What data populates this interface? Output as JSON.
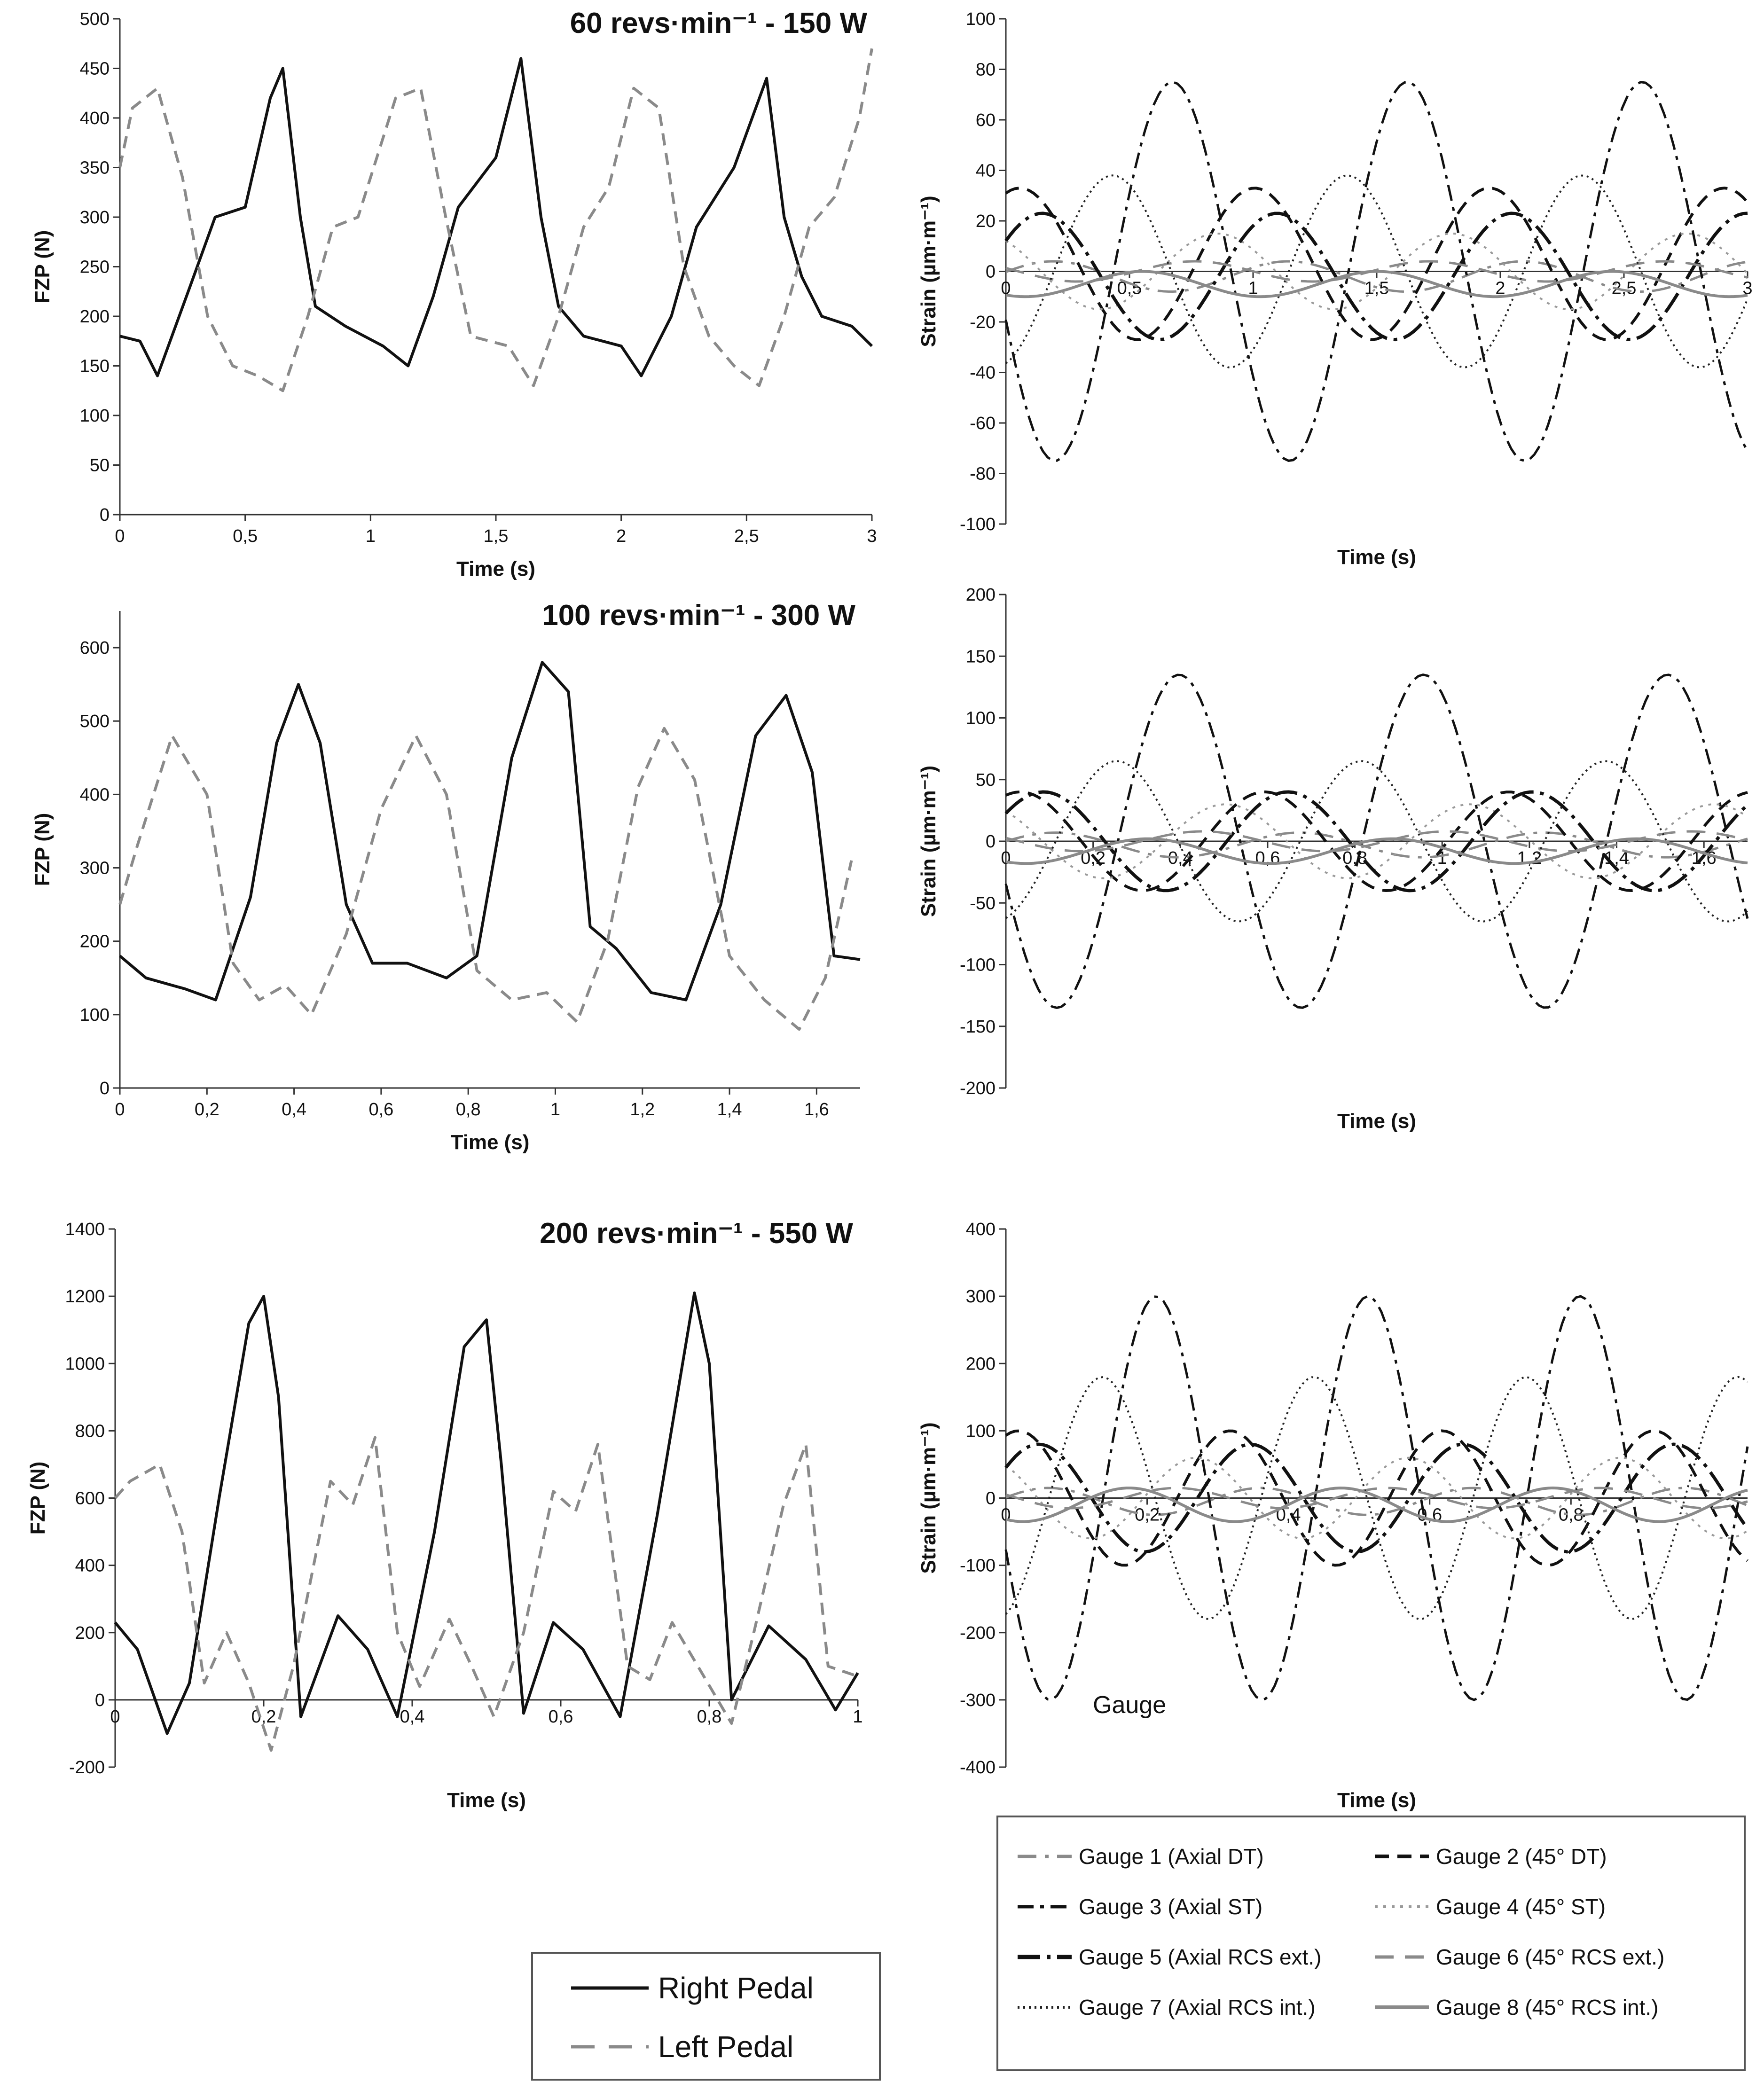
{
  "chart_data": [
    {
      "type": "line",
      "id": "force-60",
      "title": "60 revs·min⁻¹ - 150 W",
      "xlabel": "Time (s)",
      "ylabel": "FZP (N)",
      "xlim": [
        0,
        3
      ],
      "ylim": [
        0,
        500
      ],
      "xticks": [
        0,
        0.5,
        1,
        1.5,
        2,
        2.5,
        3
      ],
      "xtick_labels": [
        "0",
        "0,5",
        "1",
        "1,5",
        "2",
        "2,5",
        "3"
      ],
      "yticks": [
        0,
        50,
        100,
        150,
        200,
        250,
        300,
        350,
        400,
        450,
        500
      ],
      "ytick_labels": [
        "0",
        "50",
        "100",
        "150",
        "200",
        "250",
        "300",
        "350",
        "400",
        "450",
        "500"
      ],
      "series": [
        {
          "name": "Right Pedal",
          "style": "solid",
          "x": [
            0,
            0.08,
            0.15,
            0.28,
            0.38,
            0.5,
            0.6,
            0.65,
            0.72,
            0.78,
            0.9,
            1.05,
            1.15,
            1.25,
            1.35,
            1.5,
            1.6,
            1.68,
            1.75,
            1.85,
            2.0,
            2.08,
            2.2,
            2.3,
            2.45,
            2.58,
            2.65,
            2.72,
            2.8,
            2.92,
            3.0
          ],
          "y": [
            180,
            175,
            140,
            230,
            300,
            310,
            420,
            450,
            300,
            210,
            190,
            170,
            150,
            220,
            310,
            360,
            460,
            300,
            210,
            180,
            170,
            140,
            200,
            290,
            350,
            440,
            300,
            240,
            200,
            190,
            170
          ]
        },
        {
          "name": "Left Pedal",
          "style": "dashed",
          "x": [
            0,
            0.05,
            0.15,
            0.25,
            0.35,
            0.45,
            0.55,
            0.65,
            0.75,
            0.85,
            0.95,
            1.1,
            1.2,
            1.3,
            1.4,
            1.55,
            1.65,
            1.75,
            1.85,
            1.95,
            2.05,
            2.15,
            2.25,
            2.35,
            2.45,
            2.55,
            2.65,
            2.75,
            2.85,
            2.95,
            3.0
          ],
          "y": [
            350,
            410,
            430,
            340,
            200,
            150,
            140,
            125,
            200,
            290,
            300,
            420,
            430,
            300,
            180,
            170,
            130,
            200,
            290,
            330,
            430,
            410,
            250,
            180,
            150,
            130,
            200,
            290,
            320,
            400,
            470
          ]
        }
      ]
    },
    {
      "type": "line",
      "id": "strain-60",
      "xlabel": "Time (s)",
      "ylabel": "Strain (µm·m⁻¹)",
      "xlim": [
        0,
        3
      ],
      "ylim": [
        -100,
        100
      ],
      "xticks": [
        0,
        0.5,
        1,
        1.5,
        2,
        2.5,
        3
      ],
      "xtick_labels": [
        "0",
        "0,5",
        "1",
        "1,5",
        "2",
        "2,5",
        "3"
      ],
      "yticks": [
        -100,
        -80,
        -60,
        -40,
        -20,
        0,
        20,
        40,
        60,
        80,
        100
      ],
      "ytick_labels": [
        "-100",
        "-80",
        "-60",
        "-40",
        "-20",
        "0",
        "20",
        "40",
        "60",
        "80",
        "100"
      ],
      "period": 0.95,
      "gauges": [
        {
          "name": "Gauge 1 (Axial DT)",
          "amp": 6,
          "phase": 0.3,
          "offset": -2
        },
        {
          "name": "Gauge 2 (45° DT)",
          "amp": 30,
          "phase": 1.2,
          "offset": 3
        },
        {
          "name": "Gauge 3 (Axial ST)",
          "amp": 75,
          "phase": 3.4,
          "offset": 0
        },
        {
          "name": "Gauge 4 (45° ST)",
          "amp": 15,
          "phase": 2.2,
          "offset": 0
        },
        {
          "name": "Gauge 5 (Axial RCS ext.)",
          "amp": 25,
          "phase": 0.6,
          "offset": -2
        },
        {
          "name": "Gauge 6 (45° RCS ext.)",
          "amp": 4,
          "phase": 2.8,
          "offset": 0
        },
        {
          "name": "Gauge 7 (Axial RCS int.)",
          "amp": 38,
          "phase": 5.0,
          "offset": 0
        },
        {
          "name": "Gauge 8 (45° RCS int.)",
          "amp": 5,
          "phase": 4.2,
          "offset": -5
        }
      ]
    },
    {
      "type": "line",
      "id": "force-100",
      "title": "100 revs·min⁻¹ - 300 W",
      "xlabel": "Time (s)",
      "ylabel": "FZP (N)",
      "xlim": [
        0,
        1.7
      ],
      "ylim": [
        0,
        650
      ],
      "xticks": [
        0,
        0.2,
        0.4,
        0.6,
        0.8,
        1,
        1.2,
        1.4,
        1.6
      ],
      "xtick_labels": [
        "0",
        "0,2",
        "0,4",
        "0,6",
        "0,8",
        "1",
        "1,2",
        "1,4",
        "1,6"
      ],
      "yticks": [
        0,
        100,
        200,
        300,
        400,
        500,
        600
      ],
      "ytick_labels": [
        "0",
        "100",
        "200",
        "300",
        "400",
        "500",
        "600"
      ],
      "series": [
        {
          "name": "Right Pedal",
          "style": "solid",
          "x": [
            0,
            0.06,
            0.15,
            0.22,
            0.3,
            0.36,
            0.41,
            0.46,
            0.52,
            0.58,
            0.66,
            0.75,
            0.82,
            0.9,
            0.97,
            1.03,
            1.08,
            1.14,
            1.22,
            1.3,
            1.38,
            1.46,
            1.53,
            1.59,
            1.64,
            1.7
          ],
          "y": [
            180,
            150,
            135,
            120,
            260,
            470,
            550,
            470,
            250,
            170,
            170,
            150,
            180,
            450,
            580,
            540,
            220,
            190,
            130,
            120,
            250,
            480,
            535,
            430,
            180,
            175
          ]
        },
        {
          "name": "Left Pedal",
          "style": "dashed",
          "x": [
            0,
            0.04,
            0.12,
            0.2,
            0.26,
            0.32,
            0.38,
            0.44,
            0.52,
            0.6,
            0.68,
            0.75,
            0.82,
            0.9,
            0.98,
            1.05,
            1.12,
            1.19,
            1.25,
            1.32,
            1.4,
            1.48,
            1.56,
            1.62,
            1.68
          ],
          "y": [
            250,
            330,
            480,
            400,
            170,
            120,
            140,
            100,
            210,
            380,
            480,
            400,
            160,
            120,
            130,
            90,
            200,
            410,
            490,
            420,
            180,
            120,
            80,
            150,
            310
          ]
        }
      ]
    },
    {
      "type": "line",
      "id": "strain-100",
      "xlabel": "Time (s)",
      "ylabel": "Strain (µm·m⁻¹)",
      "xlim": [
        0,
        1.7
      ],
      "ylim": [
        -200,
        200
      ],
      "xticks": [
        0,
        0.2,
        0.4,
        0.6,
        0.8,
        1,
        1.2,
        1.4,
        1.6
      ],
      "xtick_labels": [
        "0",
        "0,2",
        "0,4",
        "0,6",
        "0,8",
        "1",
        "1,2",
        "1,4",
        "1,6"
      ],
      "yticks": [
        -200,
        -150,
        -100,
        -50,
        0,
        50,
        100,
        150,
        200
      ],
      "ytick_labels": [
        "-200",
        "-150",
        "-100",
        "-50",
        "0",
        "50",
        "100",
        "150",
        "200"
      ],
      "period": 0.56,
      "gauges": [
        {
          "name": "Gauge 1 (Axial DT)",
          "amp": 10,
          "phase": 0.3,
          "offset": -3
        },
        {
          "name": "Gauge 2 (45° DT)",
          "amp": 40,
          "phase": 1.2,
          "offset": 0
        },
        {
          "name": "Gauge 3 (Axial ST)",
          "amp": 135,
          "phase": 3.4,
          "offset": 0
        },
        {
          "name": "Gauge 4 (45° ST)",
          "amp": 30,
          "phase": 2.2,
          "offset": 0
        },
        {
          "name": "Gauge 5 (Axial RCS ext.)",
          "amp": 40,
          "phase": 0.6,
          "offset": 0
        },
        {
          "name": "Gauge 6 (45° RCS ext.)",
          "amp": 8,
          "phase": 2.8,
          "offset": 0
        },
        {
          "name": "Gauge 7 (Axial RCS int.)",
          "amp": 65,
          "phase": 5.0,
          "offset": 0
        },
        {
          "name": "Gauge 8 (45° RCS int.)",
          "amp": 10,
          "phase": 4.2,
          "offset": -8
        }
      ]
    },
    {
      "type": "line",
      "id": "force-200",
      "title": "200 revs·min⁻¹ - 550 W",
      "xlabel": "Time (s)",
      "ylabel": "FZP (N)",
      "xlim": [
        0,
        1
      ],
      "ylim": [
        -200,
        1400
      ],
      "xticks": [
        0,
        0.2,
        0.4,
        0.6,
        0.8,
        1
      ],
      "xtick_labels": [
        "0",
        "0,2",
        "0,4",
        "0,6",
        "0,8",
        "1"
      ],
      "yticks": [
        -200,
        0,
        200,
        400,
        600,
        800,
        1000,
        1200,
        1400
      ],
      "ytick_labels": [
        "-200",
        "0",
        "200",
        "400",
        "600",
        "800",
        "1000",
        "1200",
        "1400"
      ],
      "series": [
        {
          "name": "Right Pedal",
          "style": "solid",
          "x": [
            0,
            0.03,
            0.07,
            0.1,
            0.14,
            0.18,
            0.2,
            0.22,
            0.25,
            0.3,
            0.34,
            0.38,
            0.43,
            0.47,
            0.5,
            0.52,
            0.55,
            0.59,
            0.63,
            0.68,
            0.73,
            0.78,
            0.8,
            0.83,
            0.88,
            0.93,
            0.97,
            1.0
          ],
          "y": [
            230,
            150,
            -100,
            50,
            600,
            1120,
            1200,
            900,
            -50,
            250,
            150,
            -50,
            500,
            1050,
            1130,
            700,
            -40,
            230,
            150,
            -50,
            550,
            1210,
            1000,
            0,
            220,
            120,
            -30,
            80
          ]
        },
        {
          "name": "Left Pedal",
          "style": "dashed",
          "x": [
            0,
            0.02,
            0.06,
            0.09,
            0.12,
            0.15,
            0.18,
            0.21,
            0.24,
            0.29,
            0.32,
            0.35,
            0.38,
            0.41,
            0.45,
            0.48,
            0.51,
            0.55,
            0.59,
            0.62,
            0.65,
            0.69,
            0.72,
            0.75,
            0.79,
            0.83,
            0.86,
            0.9,
            0.93,
            0.96,
            1.0
          ],
          "y": [
            600,
            650,
            700,
            500,
            50,
            200,
            50,
            -150,
            100,
            650,
            580,
            780,
            200,
            40,
            240,
            100,
            -50,
            200,
            620,
            560,
            760,
            100,
            60,
            230,
            80,
            -70,
            200,
            580,
            760,
            100,
            70
          ]
        }
      ]
    },
    {
      "type": "line",
      "id": "strain-200",
      "xlabel": "Time (s)",
      "ylabel": "Strain (µm·m⁻¹)",
      "xlim": [
        0,
        1.05
      ],
      "ylim": [
        -400,
        400
      ],
      "xticks": [
        0,
        0.2,
        0.4,
        0.6,
        0.8
      ],
      "xtick_labels": [
        "0",
        "0,2",
        "0,4",
        "0,6",
        "0,8"
      ],
      "yticks": [
        -400,
        -300,
        -200,
        -100,
        0,
        100,
        200,
        300,
        400
      ],
      "ytick_labels": [
        "-400",
        "-300",
        "-200",
        "-100",
        "0",
        "100",
        "200",
        "300",
        "400"
      ],
      "period": 0.3,
      "gauges": [
        {
          "name": "Gauge 1 (Axial DT)",
          "amp": 20,
          "phase": 0.3,
          "offset": -5
        },
        {
          "name": "Gauge 2 (45° DT)",
          "amp": 100,
          "phase": 1.2,
          "offset": 0
        },
        {
          "name": "Gauge 3 (Axial ST)",
          "amp": 300,
          "phase": 3.4,
          "offset": 0
        },
        {
          "name": "Gauge 4 (45° ST)",
          "amp": 60,
          "phase": 2.2,
          "offset": 0
        },
        {
          "name": "Gauge 5 (Axial RCS ext.)",
          "amp": 80,
          "phase": 0.6,
          "offset": 0
        },
        {
          "name": "Gauge 6 (45° RCS ext.)",
          "amp": 15,
          "phase": 2.8,
          "offset": 0
        },
        {
          "name": "Gauge 7 (Axial RCS int.)",
          "amp": 180,
          "phase": 5.0,
          "offset": 0
        },
        {
          "name": "Gauge 8 (45° RCS int.)",
          "amp": 25,
          "phase": 4.2,
          "offset": -10
        }
      ],
      "annotation": "Gauge"
    }
  ],
  "legends": {
    "pedals": [
      "Right Pedal",
      "Left Pedal"
    ],
    "gauges": [
      "Gauge 1 (Axial DT)",
      "Gauge 2 (45° DT)",
      "Gauge 3 (Axial ST)",
      "Gauge 4 (45° ST)",
      "Gauge 5 (Axial RCS ext.)",
      "Gauge 6 (45° RCS ext.)",
      "Gauge 7 (Axial RCS int.)",
      "Gauge 8 (45° RCS int.)"
    ]
  },
  "colors": {
    "right_pedal": "#111111",
    "left_pedal": "#8a8a8a",
    "axis": "#333333",
    "gauges": [
      "#8a8a8a",
      "#111111",
      "#111111",
      "#9a9a9a",
      "#111111",
      "#8a8a8a",
      "#222222",
      "#8a8a8a"
    ]
  }
}
